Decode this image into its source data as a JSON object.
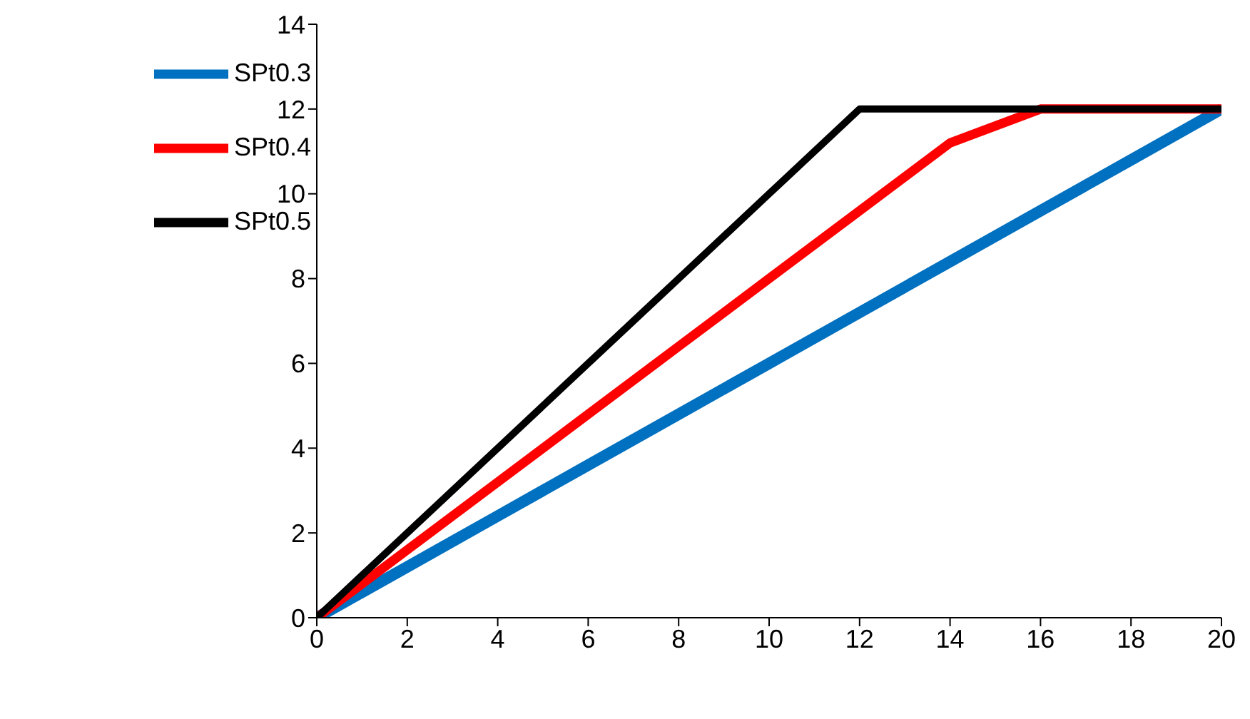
{
  "chart_data": {
    "type": "line",
    "x": [
      0,
      2,
      4,
      6,
      8,
      10,
      12,
      14,
      16,
      18,
      20
    ],
    "series": [
      {
        "name": "SPt0.3",
        "color": "#0070c0",
        "values": [
          0,
          1.2,
          2.4,
          3.6,
          4.8,
          6,
          7.2,
          8.4,
          9.6,
          10.8,
          12
        ]
      },
      {
        "name": "SPt0.4",
        "color": "#ff0000",
        "values": [
          0,
          1.6,
          3.2,
          4.8,
          6.4,
          8,
          9.6,
          11.2,
          12,
          12,
          12
        ]
      },
      {
        "name": "SPt0.5",
        "color": "#000000",
        "values": [
          0,
          2,
          4,
          6,
          8,
          10,
          12,
          12,
          12,
          12,
          12
        ]
      }
    ],
    "xlim": [
      0,
      20
    ],
    "xticks": [
      0,
      2,
      4,
      6,
      8,
      10,
      12,
      14,
      16,
      18,
      20
    ],
    "ylim": [
      0,
      14
    ],
    "yticks": [
      0,
      2,
      4,
      6,
      8,
      10,
      12,
      14
    ],
    "grid": false,
    "legend": "top left",
    "marker": "none",
    "line_style": "solid"
  }
}
